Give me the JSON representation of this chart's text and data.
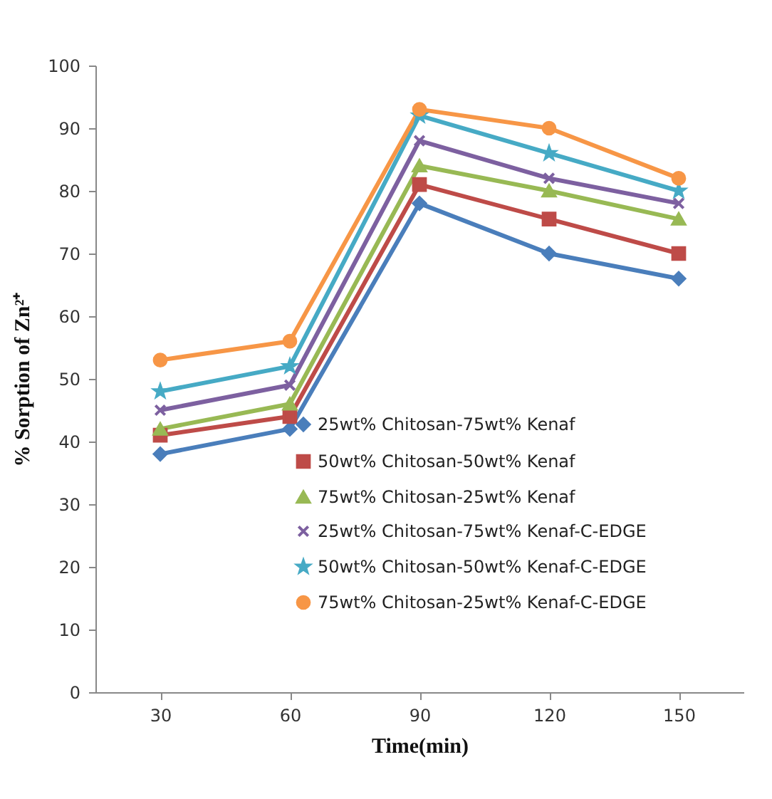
{
  "chart_data": {
    "type": "line",
    "xlabel": "Time(min)",
    "ylabel": "% Sorption of Zn²⁺",
    "categories": [
      "30",
      "60",
      "90",
      "120",
      "150"
    ],
    "ylim": [
      0,
      100
    ],
    "yticks": [
      0,
      10,
      20,
      30,
      40,
      50,
      60,
      70,
      80,
      90,
      100
    ],
    "grid": false,
    "legend": "bottom right",
    "line_style": "solid",
    "series": [
      {
        "name": "25wt% Chitosan-75wt% Kenaf",
        "color": "#4a7ebb",
        "marker": "diamond",
        "values": [
          38,
          42,
          78,
          70,
          66
        ]
      },
      {
        "name": "50wt% Chitosan-50wt% Kenaf",
        "color": "#be4b48",
        "marker": "square",
        "values": [
          41,
          44,
          81,
          75.5,
          70
        ]
      },
      {
        "name": "75wt% Chitosan-25wt% Kenaf",
        "color": "#98b954",
        "marker": "triangle",
        "values": [
          42,
          46,
          84,
          80,
          75.5
        ]
      },
      {
        "name": "25wt% Chitosan-75wt% Kenaf-C-EDGE",
        "color": "#7d60a0",
        "marker": "cross",
        "values": [
          45,
          49,
          88,
          82,
          78
        ]
      },
      {
        "name": "50wt% Chitosan-50wt% Kenaf-C-EDGE",
        "color": "#46aac5",
        "marker": "star",
        "values": [
          48,
          52,
          92,
          86,
          80
        ]
      },
      {
        "name": "75wt% Chitosan-25wt% Kenaf-C-EDGE",
        "color": "#f79646",
        "marker": "circle",
        "values": [
          53,
          56,
          93,
          90,
          82
        ]
      }
    ]
  }
}
